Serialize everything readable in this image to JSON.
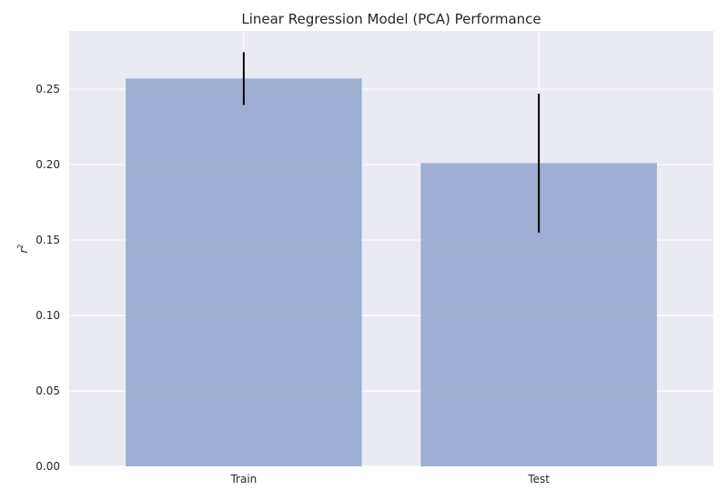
{
  "chart_data": {
    "type": "bar",
    "title": "Linear Regression Model (PCA) Performance",
    "xlabel": "",
    "ylabel": "r²",
    "ylabel_base": "r",
    "ylabel_sup": "2",
    "categories": [
      "Train",
      "Test"
    ],
    "values": [
      0.257,
      0.201
    ],
    "errors": [
      0.0175,
      0.046
    ],
    "ylim": [
      0,
      0.2886
    ],
    "yticks": [
      0.0,
      0.05,
      0.1,
      0.15,
      0.2,
      0.25
    ],
    "ytick_labels": [
      "0.00",
      "0.05",
      "0.10",
      "0.15",
      "0.20",
      "0.25"
    ],
    "grid": true,
    "colors": {
      "plot_background": "#EAEAF2",
      "grid": "#FFFFFF",
      "bar": "#9AACD1",
      "error_bar": "#000000",
      "text": "#262626"
    }
  }
}
